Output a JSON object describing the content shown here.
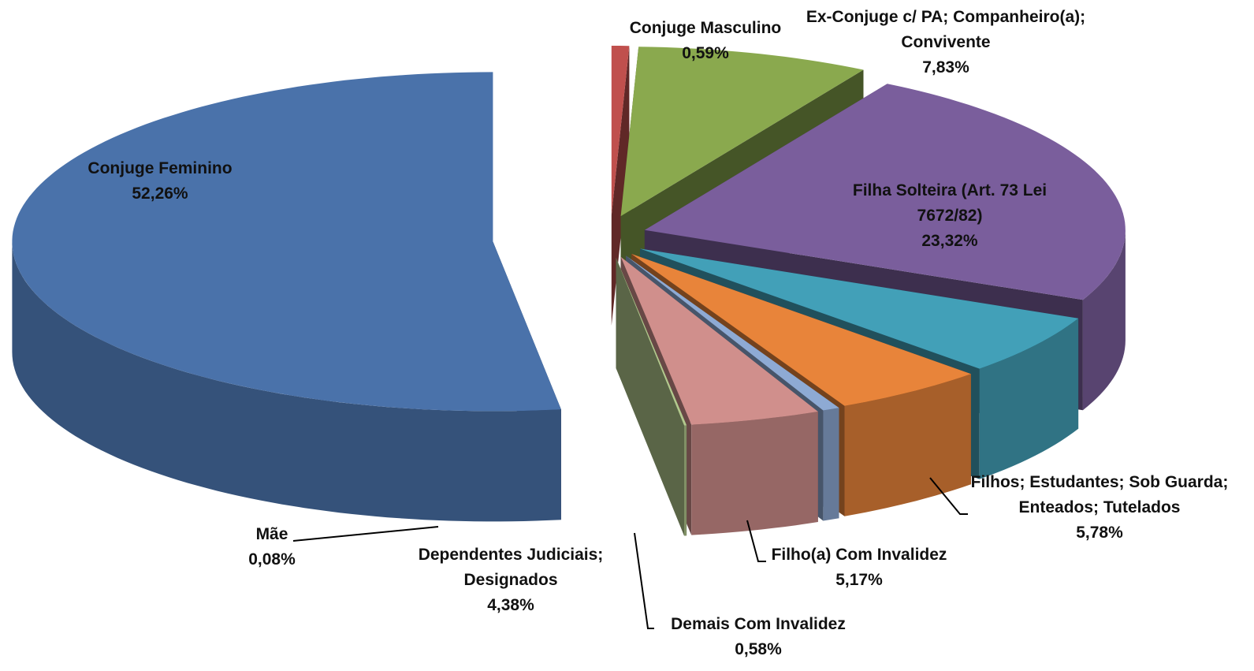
{
  "chart_data": {
    "type": "pie",
    "categories": [
      "Conjuge Masculino",
      "Ex-Conjuge c/ PA; Companheiro(a); Convivente",
      "Filha Solteira (Art. 73 Lei 7672/82)",
      "Filhos; Estudantes; Sob Guarda; Enteados; Tutelados",
      "Filho(a) Com Invalidez",
      "Demais Com Invalidez",
      "Dependentes Judiciais; Designados",
      "Mãe",
      "Conjuge Feminino"
    ],
    "values": [
      0.59,
      7.83,
      23.32,
      5.78,
      5.17,
      0.58,
      4.38,
      0.08,
      52.26
    ],
    "value_labels": [
      "0,59%",
      "7,83%",
      "23,32%",
      "5,78%",
      "5,17%",
      "0,58%",
      "4,38%",
      "0,08%",
      "52,26%"
    ],
    "colors": [
      "#c0504d",
      "#8aa94e",
      "#7a5e9c",
      "#42a0b8",
      "#e8843a",
      "#8eaad4",
      "#d08f8c",
      "#b3c98e",
      "#4a72aa"
    ]
  }
}
